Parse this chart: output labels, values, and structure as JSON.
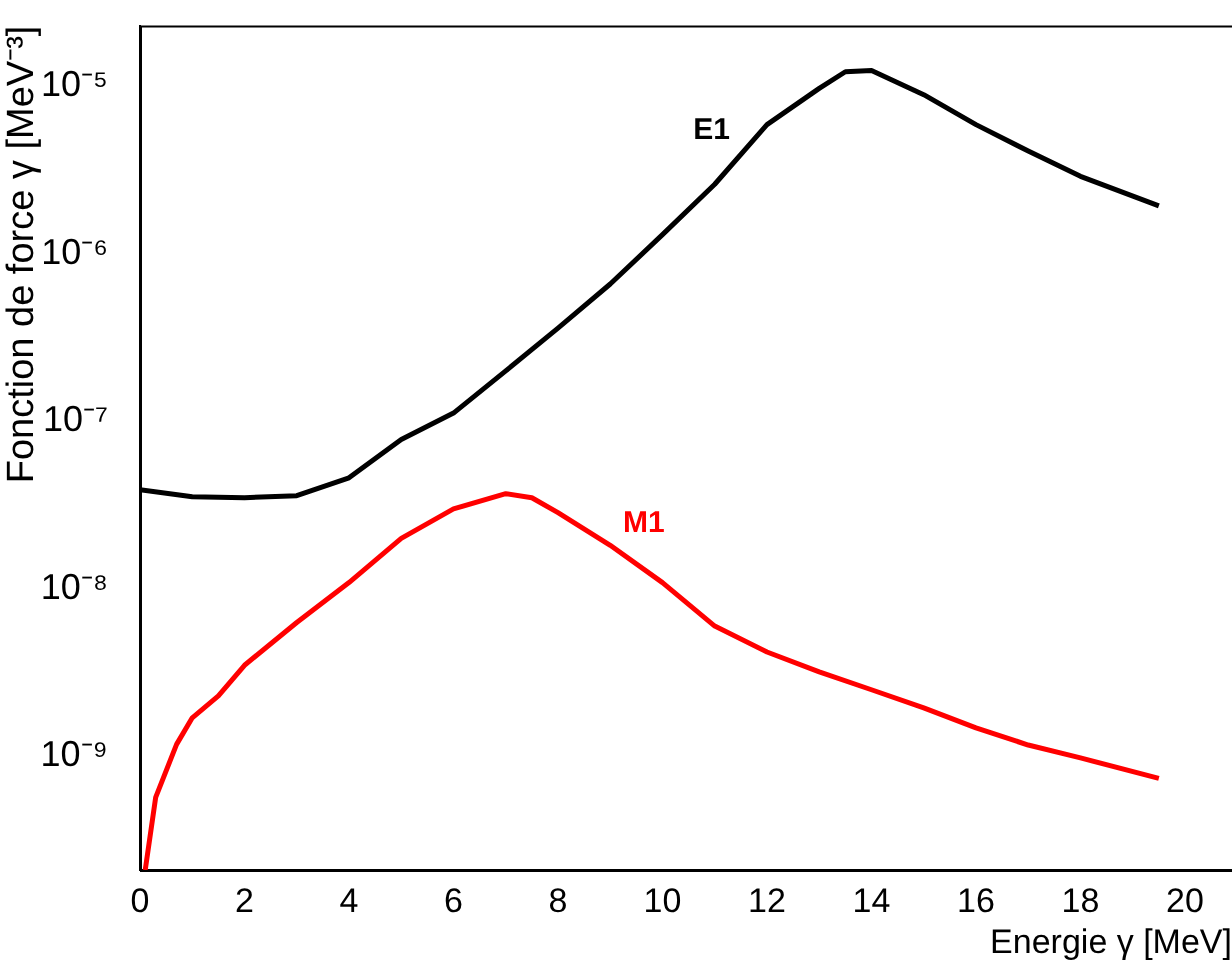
{
  "chart_data": {
    "type": "line",
    "xlabel": "Energie γ [MeV]",
    "ylabel": "Fonction de force γ [MeV⁻³]",
    "log": "y",
    "grid": false,
    "legend": false,
    "marker": "none",
    "line_style": "solid",
    "xlim": [
      0,
      20.9
    ],
    "xticks": [
      0,
      2,
      4,
      6,
      8,
      10,
      12,
      14,
      16,
      18,
      20
    ],
    "ylim": [
      2.1e-10,
      2.3e-05
    ],
    "yticks": [
      {
        "value": 1e-09,
        "label": "10⁻⁹"
      },
      {
        "value": 1e-08,
        "label": "10⁻⁸"
      },
      {
        "value": 1e-07,
        "label": "10⁻⁷"
      },
      {
        "value": 1e-06,
        "label": "10⁻⁶"
      },
      {
        "value": 1e-05,
        "label": "10⁻⁵"
      }
    ],
    "series": [
      {
        "name": "E1",
        "color": "#000000",
        "x": [
          0,
          1,
          2,
          3,
          4,
          5,
          6,
          7,
          8,
          9,
          10,
          11,
          12,
          13,
          13.5,
          14,
          15,
          16,
          17,
          18,
          19.5
        ],
        "values": [
          3.9e-08,
          3.55e-08,
          3.5e-08,
          3.6e-08,
          4.6e-08,
          7.8e-08,
          1.12e-07,
          2e-07,
          3.6e-07,
          6.6e-07,
          1.3e-06,
          2.6e-06,
          5.9e-06,
          9.7e-06,
          1.22e-05,
          1.24e-05,
          8.9e-06,
          5.9e-06,
          4.1e-06,
          2.9e-06,
          1.93e-06
        ]
      },
      {
        "name": "M1",
        "color": "#ff0000",
        "x": [
          0.1,
          0.3,
          0.7,
          1,
          1.5,
          2,
          3,
          4,
          5,
          6,
          7,
          7.5,
          8,
          9,
          10,
          11,
          12,
          13,
          14,
          15,
          16,
          17,
          18,
          19.5
        ],
        "values": [
          2.1e-10,
          5.7e-10,
          1.18e-09,
          1.7e-09,
          2.3e-09,
          3.5e-09,
          6.3e-09,
          1.09e-08,
          2e-08,
          3e-08,
          3.7e-08,
          3.5e-08,
          2.85e-08,
          1.82e-08,
          1.09e-08,
          6e-09,
          4.2e-09,
          3.2e-09,
          2.5e-09,
          1.95e-09,
          1.48e-09,
          1.17e-09,
          9.8e-10,
          7.4e-10
        ]
      }
    ]
  }
}
